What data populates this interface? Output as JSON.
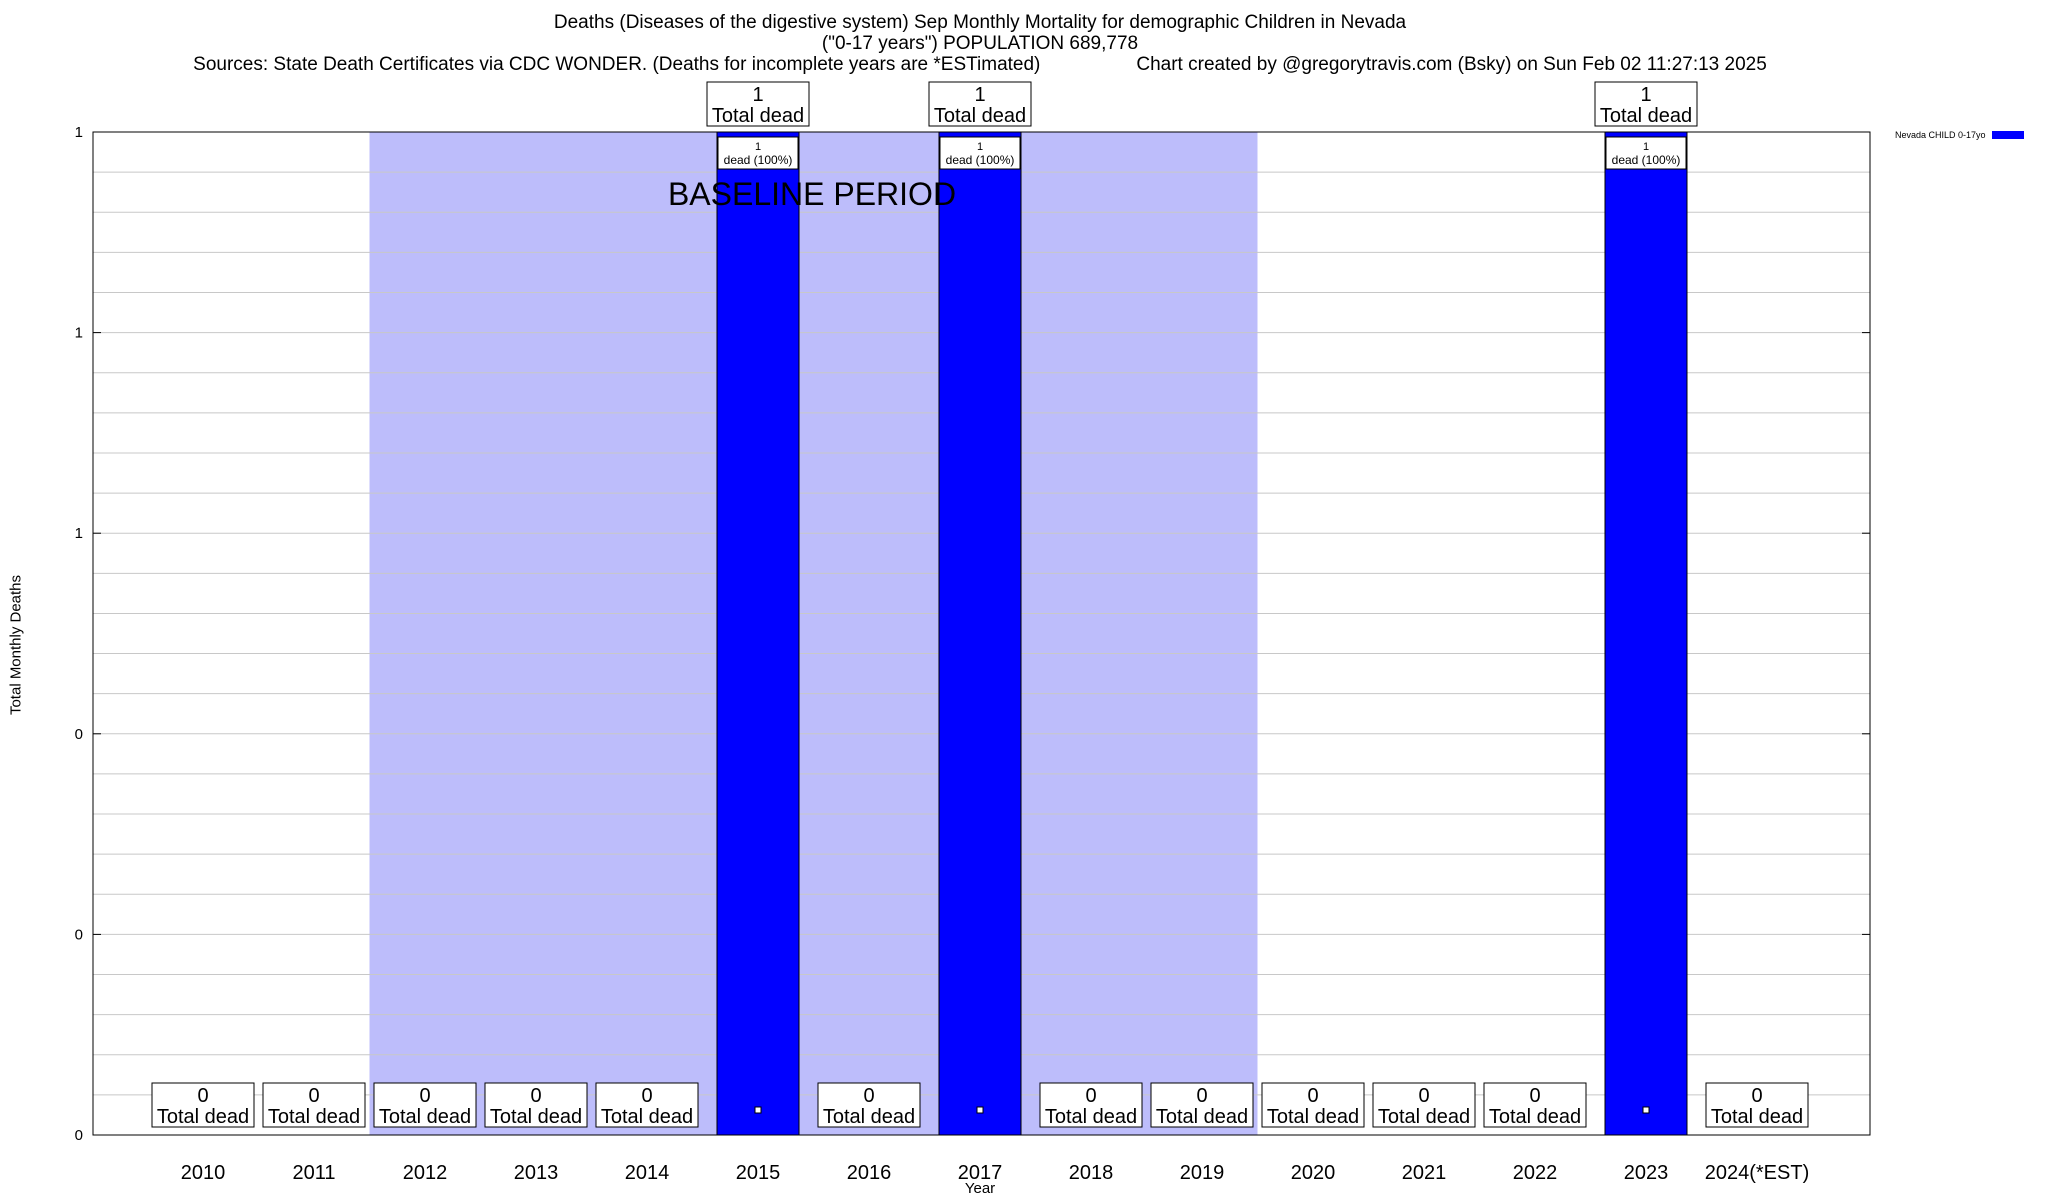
{
  "chart_data": {
    "type": "bar",
    "title": "Deaths (Diseases of the digestive system) Sep Monthly Mortality for demographic Children in Nevada",
    "subtitle": "(\"0-17 years\") POPULATION 689,778",
    "sources": "Sources: State Death Certificates via CDC WONDER. (Deaths for incomplete years are *ESTimated)",
    "credit": "Chart created by @gregorytravis.com (Bsky) on Sun Feb 02 11:27:13 2025",
    "xlabel": "Year",
    "ylabel": "Total Monthly Deaths",
    "ylim": [
      0,
      1
    ],
    "y_tick_labels": [
      "0",
      "0",
      "0",
      "1",
      "1",
      "1"
    ],
    "grid": true,
    "legend_position": "top-right",
    "categories": [
      "2010",
      "2011",
      "2012",
      "2013",
      "2014",
      "2015",
      "2016",
      "2017",
      "2018",
      "2019",
      "2020",
      "2021",
      "2022",
      "2023",
      "2024(*EST)"
    ],
    "series": [
      {
        "name": "Nevada CHILD 0-17yo",
        "color": "#0000ff",
        "values": [
          0,
          0,
          0,
          0,
          0,
          1,
          0,
          1,
          0,
          0,
          0,
          0,
          0,
          1,
          0
        ]
      }
    ],
    "total_labels": [
      "0",
      "0",
      "0",
      "0",
      "0",
      "1",
      "0",
      "1",
      "0",
      "0",
      "0",
      "0",
      "0",
      "1",
      "0"
    ],
    "total_suffix": "Total dead",
    "bar_inner_labels": [
      "",
      "",
      "",
      "",
      "",
      "1",
      "",
      "1",
      "",
      "",
      "",
      "",
      "",
      "1",
      ""
    ],
    "bar_inner_suffix": "dead (100%)",
    "baseline": {
      "label": "BASELINE PERIOD",
      "from": "2012",
      "to": "2019",
      "color": "#bdbdfb"
    }
  }
}
